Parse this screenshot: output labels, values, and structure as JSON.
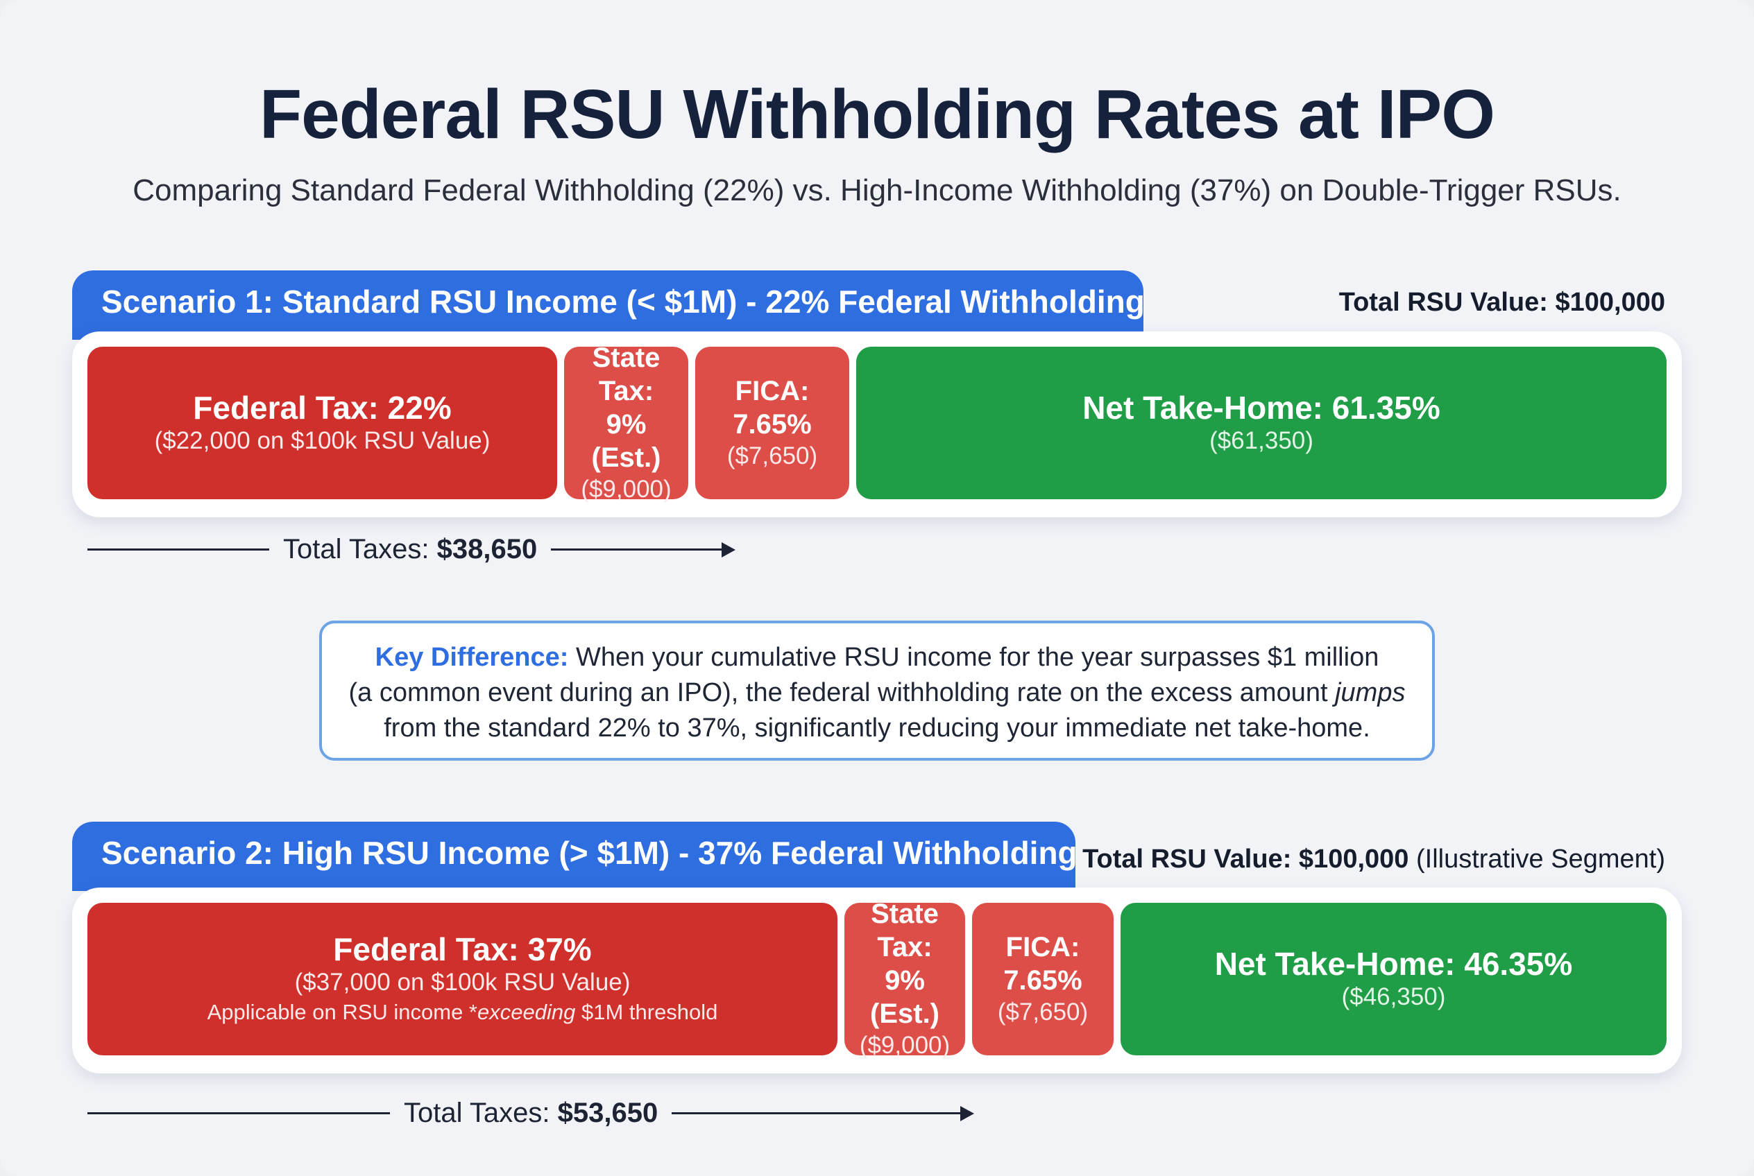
{
  "title": "Federal RSU Withholding Rates at IPO",
  "subtitle": "Comparing Standard Federal Withholding (22%) vs. High-Income Withholding (37%) on Double-Trigger RSUs.",
  "colors": {
    "federal": "#d0302b",
    "state_fica": "#de4e48",
    "net": "#1f9d47",
    "accent": "#2f6ee0"
  },
  "chart_data": {
    "type": "bar",
    "orientation": "horizontal-stacked",
    "categories": [
      "Federal Tax",
      "State Tax",
      "FICA",
      "Net Take-Home"
    ],
    "series": [
      {
        "name": "Scenario 1: Standard RSU Income (< $1M) - 22% Federal Withholding",
        "total_value": 100000,
        "values": [
          22,
          9,
          7.65,
          61.35
        ],
        "amounts": [
          22000,
          9000,
          7650,
          61350
        ],
        "total_taxes": 38650
      },
      {
        "name": "Scenario 2: High RSU Income (> $1M) - 37% Federal Withholding",
        "total_value": 100000,
        "values": [
          37,
          9,
          7.65,
          46.35
        ],
        "amounts": [
          37000,
          9000,
          7650,
          46350
        ],
        "total_taxes": 53650
      }
    ]
  },
  "scenario1": {
    "header": "Scenario 1: Standard RSU Income (< $1M) - 22% Federal Withholding",
    "total_label": "Total RSU Value:",
    "total_value": "$100,000",
    "federal": {
      "label": "Federal Tax: 22%",
      "amount": "($22,000 on $100k RSU Value)"
    },
    "state": {
      "label_line1": "State Tax:",
      "label_line2": "9% (Est.)",
      "amount": "($9,000)"
    },
    "fica": {
      "label_line1": "FICA:",
      "label_line2": "7.65%",
      "amount": "($7,650)"
    },
    "net": {
      "label": "Net Take-Home: 61.35%",
      "amount": "($61,350)"
    },
    "total_taxes_label": "Total Taxes:",
    "total_taxes_value": "$38,650"
  },
  "key_difference": {
    "label": "Key Difference:",
    "text_1": "When your cumulative RSU income for the year surpasses $1 million",
    "text_2": "(a common event during an IPO), the federal withholding rate on the excess amount",
    "emphasis": "jumps",
    "text_3": "from the standard 22% to 37%, significantly reducing your immediate net take-home."
  },
  "scenario2": {
    "header": "Scenario 2: High RSU Income (> $1M) - 37% Federal Withholding",
    "total_label": "Total RSU Value:",
    "total_value": "$100,000",
    "total_note": "(Illustrative Segment)",
    "federal": {
      "label": "Federal Tax: 37%",
      "amount": "($37,000 on $100k RSU Value)",
      "note_prefix": "Applicable on RSU income *",
      "note_emphasis": "exceeding",
      "note_suffix": " $1M threshold"
    },
    "state": {
      "label_line1": "State Tax:",
      "label_line2": "9% (Est.)",
      "amount": "($9,000)"
    },
    "fica": {
      "label_line1": "FICA:",
      "label_line2": "7.65%",
      "amount": "($7,650)"
    },
    "net": {
      "label": "Net Take-Home: 46.35%",
      "amount": "($46,350)"
    },
    "total_taxes_label": "Total Taxes:",
    "total_taxes_value": "$53,650"
  }
}
